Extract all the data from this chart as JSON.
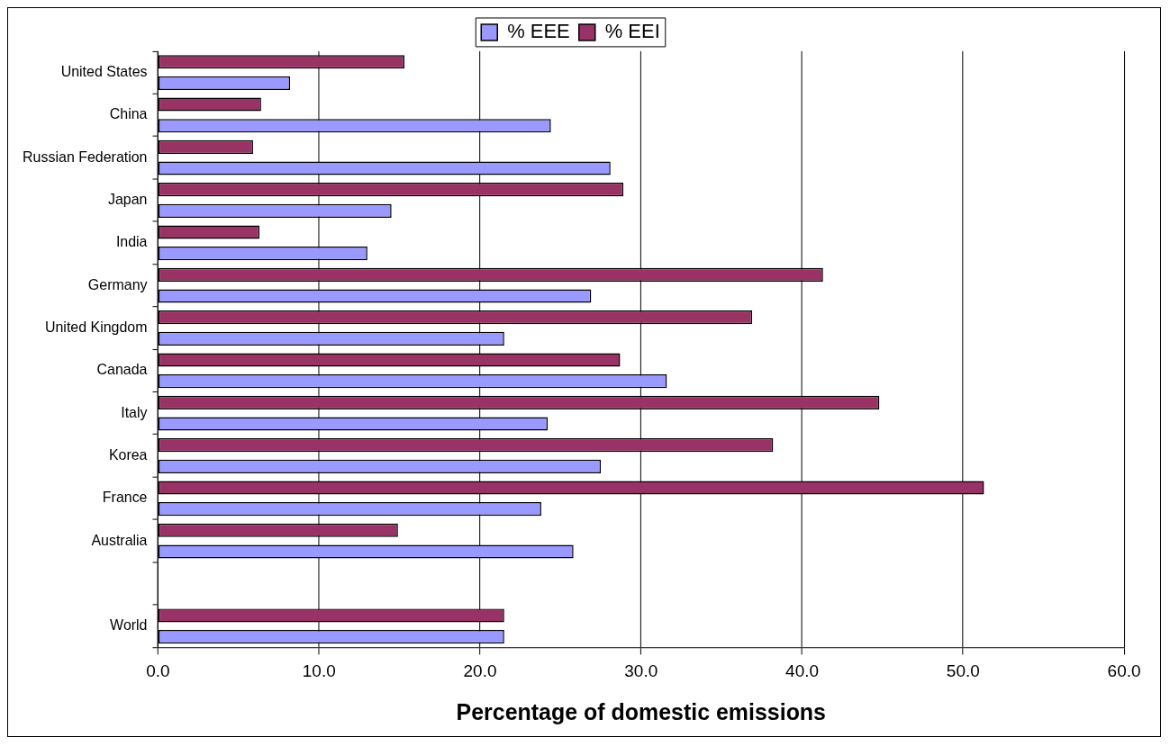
{
  "chart_data": {
    "type": "bar",
    "orientation": "horizontal",
    "xlabel": "Percentage of domestic emissions",
    "categories": [
      "United States",
      "China",
      "Russian Federation",
      "Japan",
      "India",
      "Germany",
      "United Kingdom",
      "Canada",
      "Italy",
      "Korea",
      "France",
      "Australia",
      null,
      "World"
    ],
    "series": [
      {
        "name": "% EEE",
        "color": "#9999ff",
        "values": [
          8.2,
          24.4,
          28.1,
          14.5,
          13.0,
          26.9,
          21.5,
          31.6,
          24.2,
          27.5,
          23.8,
          25.8,
          null,
          21.5
        ]
      },
      {
        "name": "% EEI",
        "color": "#993366",
        "values": [
          15.3,
          6.4,
          5.9,
          28.9,
          6.3,
          41.3,
          36.9,
          28.7,
          44.8,
          38.2,
          51.3,
          14.9,
          null,
          21.5
        ]
      }
    ],
    "xlim": [
      0,
      60
    ],
    "xticks": [
      {
        "value": 0,
        "label": "0.0"
      },
      {
        "value": 10,
        "label": "10.0"
      },
      {
        "value": 20,
        "label": "20.0"
      },
      {
        "value": 30,
        "label": "30.0"
      },
      {
        "value": 40,
        "label": "40.0"
      },
      {
        "value": 50,
        "label": "50.0"
      },
      {
        "value": 60,
        "label": "60.0"
      }
    ],
    "grid": "x",
    "legend": "top"
  }
}
